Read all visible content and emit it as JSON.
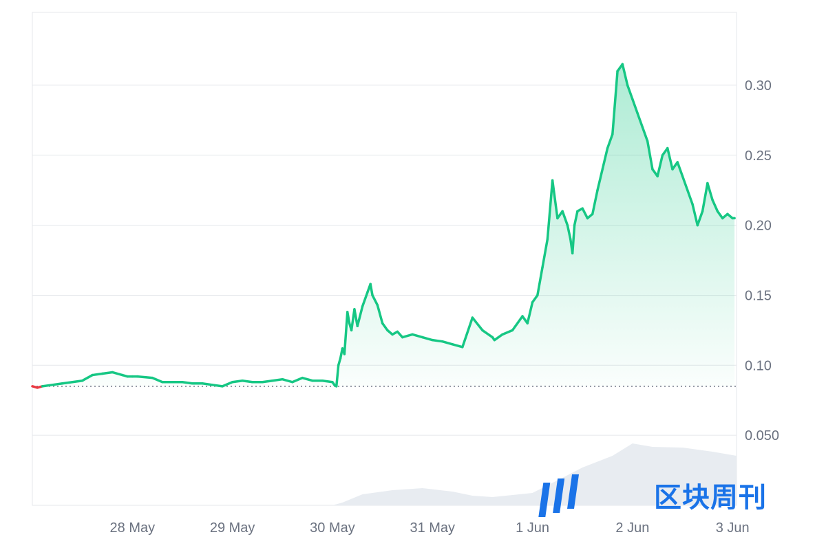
{
  "chart_data": {
    "type": "area",
    "x_ticks": [
      "28 May",
      "29 May",
      "30 May",
      "31 May",
      "1 Jun",
      "2 Jun",
      "3 Jun"
    ],
    "y_ticks": [
      "0.30",
      "0.25",
      "0.20",
      "0.15",
      "0.10",
      "0.050"
    ],
    "y_tick_values": [
      0.3,
      0.25,
      0.2,
      0.15,
      0.1,
      0.05
    ],
    "ylim": [
      0.0,
      0.352
    ],
    "xlim_days": [
      0.0,
      7.04
    ],
    "reference_value": 0.085,
    "grid": true,
    "y_axis_side": "right",
    "colors": {
      "up": "#16c784",
      "down": "#ea3943",
      "volume": "#e8ecf1",
      "grid": "#e5e7eb",
      "reference": "#6b7280"
    },
    "series": [
      {
        "values_x_days": [
          0.0,
          0.05,
          0.1,
          0.2,
          0.3,
          0.4,
          0.5,
          0.6,
          0.7,
          0.8,
          0.9,
          0.95,
          1.0,
          1.05,
          1.2,
          1.3,
          1.4,
          1.5,
          1.6,
          1.7,
          1.8,
          1.9,
          2.0,
          2.1,
          2.2,
          2.3,
          2.4,
          2.5,
          2.6,
          2.7,
          2.8,
          2.9,
          3.0,
          3.02,
          3.04,
          3.06,
          3.08,
          3.1,
          3.12,
          3.15,
          3.17,
          3.19,
          3.22,
          3.25,
          3.3,
          3.35,
          3.38,
          3.4,
          3.45,
          3.5,
          3.55,
          3.6,
          3.65,
          3.7,
          3.8,
          3.9,
          4.0,
          4.1,
          4.2,
          4.3,
          4.4,
          4.5,
          4.6,
          4.62,
          4.66,
          4.7,
          4.8,
          4.9,
          4.95,
          5.0,
          5.05,
          5.1,
          5.15,
          5.2,
          5.25,
          5.3,
          5.35,
          5.38,
          5.4,
          5.42,
          5.45,
          5.5,
          5.55,
          5.6,
          5.65,
          5.7,
          5.75,
          5.8,
          5.85,
          5.9,
          5.95,
          6.0,
          6.05,
          6.1,
          6.15,
          6.2,
          6.25,
          6.3,
          6.35,
          6.4,
          6.45,
          6.5,
          6.55,
          6.6,
          6.65,
          6.7,
          6.75,
          6.8,
          6.85,
          6.9,
          6.95,
          7.0,
          7.02
        ],
        "values_y": [
          0.085,
          0.084,
          0.085,
          0.086,
          0.087,
          0.088,
          0.089,
          0.093,
          0.094,
          0.095,
          0.093,
          0.092,
          0.092,
          0.092,
          0.091,
          0.088,
          0.088,
          0.088,
          0.087,
          0.087,
          0.086,
          0.085,
          0.088,
          0.089,
          0.088,
          0.088,
          0.089,
          0.09,
          0.088,
          0.091,
          0.089,
          0.089,
          0.088,
          0.086,
          0.085,
          0.1,
          0.105,
          0.112,
          0.108,
          0.138,
          0.13,
          0.125,
          0.14,
          0.128,
          0.142,
          0.152,
          0.158,
          0.15,
          0.143,
          0.13,
          0.125,
          0.122,
          0.124,
          0.12,
          0.122,
          0.12,
          0.118,
          0.117,
          0.115,
          0.113,
          0.134,
          0.125,
          0.12,
          0.118,
          0.12,
          0.122,
          0.125,
          0.135,
          0.13,
          0.145,
          0.15,
          0.17,
          0.19,
          0.232,
          0.205,
          0.21,
          0.2,
          0.19,
          0.18,
          0.2,
          0.21,
          0.212,
          0.205,
          0.208,
          0.225,
          0.24,
          0.255,
          0.265,
          0.31,
          0.315,
          0.3,
          0.29,
          0.28,
          0.27,
          0.26,
          0.24,
          0.235,
          0.25,
          0.255,
          0.24,
          0.245,
          0.235,
          0.225,
          0.215,
          0.2,
          0.21,
          0.23,
          0.218,
          0.21,
          0.205,
          0.208,
          0.205,
          0.205,
          0.207,
          0.206
        ]
      }
    ],
    "volume": {
      "x_days": [
        0.0,
        1.0,
        2.0,
        3.0,
        3.1,
        3.3,
        3.6,
        3.9,
        4.2,
        4.4,
        4.6,
        5.0,
        5.3,
        5.5,
        5.8,
        6.0,
        6.2,
        6.5,
        6.8,
        7.04
      ],
      "relative_height": [
        0.0,
        0.0,
        0.0,
        0.0,
        0.04,
        0.16,
        0.22,
        0.25,
        0.2,
        0.14,
        0.12,
        0.18,
        0.4,
        0.55,
        0.72,
        0.9,
        0.85,
        0.84,
        0.78,
        0.72
      ]
    }
  },
  "watermark": {
    "text": "区块周刊",
    "color": "#1a73e8"
  }
}
